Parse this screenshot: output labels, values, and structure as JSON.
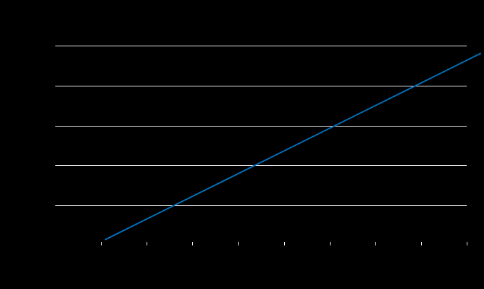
{
  "chart_data": {
    "type": "line",
    "title": "",
    "xlabel": "",
    "ylabel": "",
    "grid": "horizontal",
    "legend": "none",
    "background_color": "#000000",
    "plot_background_color": "#000000",
    "grid_color": "#ffffff",
    "tick_color": "#ffffff",
    "line_color": "#0072bd",
    "xlim": [
      0,
      9
    ],
    "ylim": [
      0,
      6
    ],
    "xticks": [
      1,
      2,
      3,
      4,
      5,
      6,
      7,
      8,
      9
    ],
    "yticks": [
      1,
      2,
      3,
      4,
      5
    ],
    "series": [
      {
        "x": [
          1.1,
          9.3
        ],
        "y": [
          0.15,
          4.8
        ]
      }
    ]
  }
}
